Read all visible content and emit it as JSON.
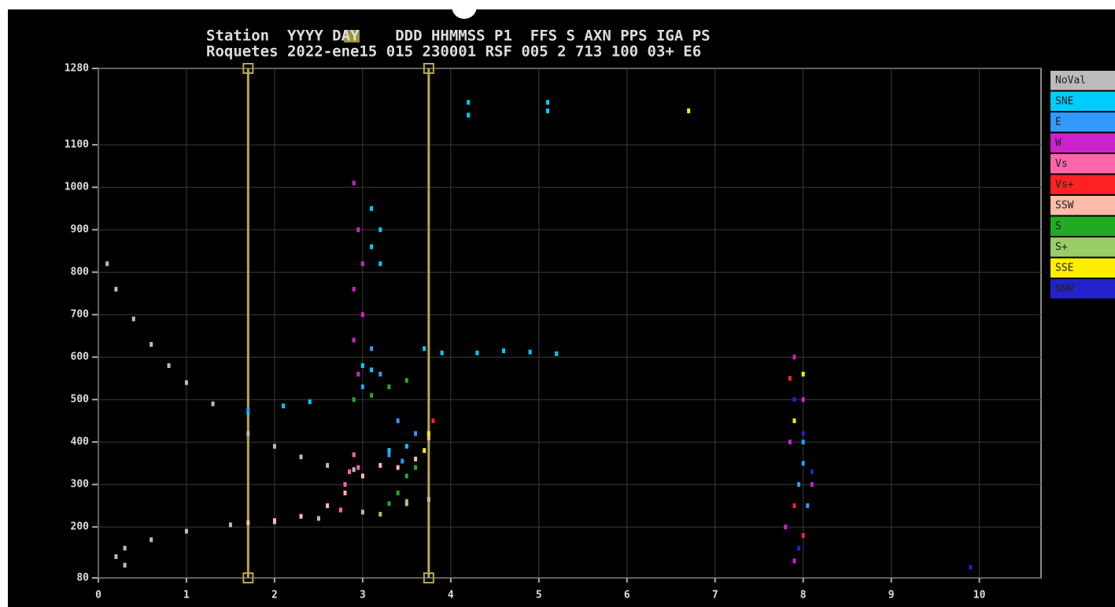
{
  "chart_data": {
    "type": "scatter",
    "header": [
      "Station  YYYY DAY    DDD HHMMSS P1  FFS S AXN PPS IGA PS",
      "Roquetes 2022-ene15 015 230001 RSF 005 2 713 100 03+ E6"
    ],
    "xlim": [
      0,
      10.7
    ],
    "ylim": [
      80,
      1280
    ],
    "xticks": [
      0,
      1,
      2,
      3,
      4,
      5,
      6,
      7,
      8,
      9,
      10
    ],
    "yticks": [
      80,
      200,
      300,
      400,
      500,
      600,
      700,
      800,
      900,
      1000,
      1100,
      1280
    ],
    "grid": true,
    "cursors": [
      1.7,
      3.75
    ],
    "cursor_color": "#b8a84a",
    "series": [
      {
        "name": "NoVal",
        "color": "#bbbbbb",
        "x": [
          0.1,
          0.2,
          0.4,
          0.6,
          0.8,
          1.0,
          1.3,
          1.7,
          2.0,
          2.3,
          2.6,
          2.9,
          0.3,
          0.2,
          0.3,
          0.6,
          1.0,
          1.5,
          2.0,
          2.5,
          3.0,
          3.5,
          3.75
        ],
        "values": [
          820,
          760,
          690,
          630,
          580,
          540,
          490,
          420,
          390,
          365,
          345,
          335,
          110,
          130,
          150,
          170,
          190,
          205,
          212,
          220,
          235,
          255,
          265
        ]
      },
      {
        "name": "SNE",
        "color": "#00ccff",
        "x": [
          4.2,
          4.2,
          5.1,
          5.1,
          3.1,
          3.2,
          3.1,
          3.2,
          3.0,
          3.1,
          3.7,
          3.9,
          4.3,
          4.6,
          4.9,
          5.2,
          1.7,
          2.1,
          2.4,
          3.3,
          3.5
        ],
        "values": [
          1200,
          1170,
          1200,
          1180,
          950,
          900,
          860,
          820,
          580,
          570,
          620,
          610,
          610,
          615,
          612,
          608,
          470,
          485,
          495,
          380,
          390
        ]
      },
      {
        "name": "E",
        "color": "#3399ff",
        "x": [
          3.0,
          3.2,
          3.4,
          3.6,
          3.3,
          3.45,
          8.0,
          8.0,
          7.95,
          8.05,
          3.1,
          1.7
        ],
        "values": [
          530,
          560,
          450,
          420,
          370,
          355,
          400,
          350,
          300,
          250,
          620,
          475
        ]
      },
      {
        "name": "W",
        "color": "#cc22cc",
        "x": [
          2.9,
          2.95,
          3.0,
          2.9,
          3.0,
          2.9,
          2.95,
          7.9,
          8.0,
          7.85,
          8.1,
          7.8,
          7.9
        ],
        "values": [
          1010,
          900,
          820,
          760,
          700,
          640,
          560,
          600,
          500,
          400,
          300,
          200,
          120
        ]
      },
      {
        "name": "Vs",
        "color": "#ff66aa",
        "x": [
          2.75,
          2.8,
          2.85,
          2.9,
          2.95
        ],
        "values": [
          240,
          300,
          330,
          370,
          340
        ]
      },
      {
        "name": "Vs+",
        "color": "#ff2222",
        "x": [
          7.85,
          7.9,
          8.0,
          3.8
        ],
        "values": [
          550,
          250,
          180,
          450
        ]
      },
      {
        "name": "SSW",
        "color": "#ffbbaa",
        "x": [
          1.7,
          2.0,
          2.3,
          2.6,
          2.8,
          3.0,
          3.2,
          3.4,
          3.6,
          3.75
        ],
        "values": [
          210,
          215,
          225,
          250,
          280,
          320,
          345,
          340,
          360,
          410
        ]
      },
      {
        "name": "S",
        "color": "#22aa22",
        "x": [
          3.3,
          3.4,
          3.5,
          3.6,
          2.9,
          3.1,
          3.3,
          3.5
        ],
        "values": [
          255,
          280,
          320,
          340,
          500,
          510,
          530,
          545
        ]
      },
      {
        "name": "S+",
        "color": "#99cc66",
        "x": [
          3.2,
          3.5
        ],
        "values": [
          230,
          260
        ]
      },
      {
        "name": "SSE",
        "color": "#ffee00",
        "x": [
          3.75,
          3.7,
          7.9,
          8.0,
          6.7
        ],
        "values": [
          420,
          380,
          450,
          560,
          1180
        ]
      },
      {
        "name": "NNW",
        "color": "#2222cc",
        "x": [
          7.9,
          8.0,
          8.1,
          7.95,
          9.9
        ],
        "values": [
          500,
          420,
          330,
          150,
          105
        ]
      }
    ]
  }
}
